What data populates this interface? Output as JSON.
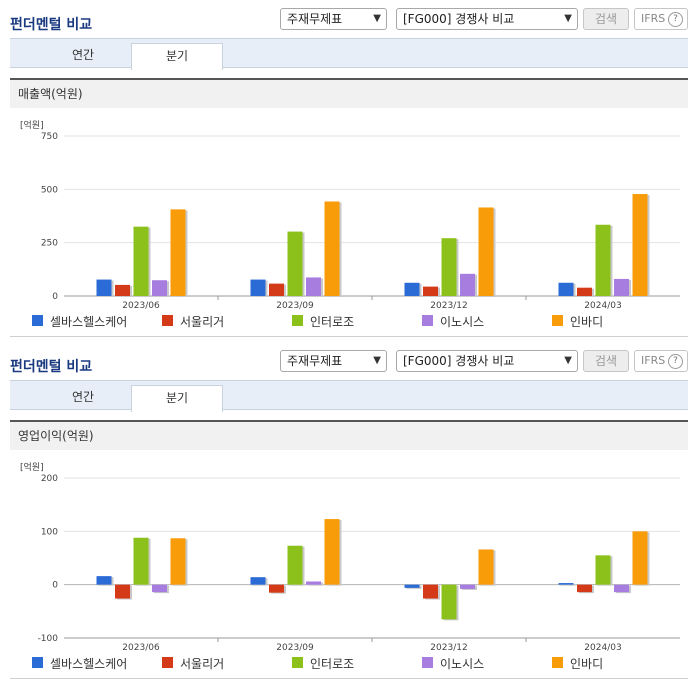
{
  "colors": {
    "series": [
      "#2a6bd6",
      "#d53a18",
      "#8cc11b",
      "#a77ee0",
      "#f99c0a"
    ]
  },
  "panels": [
    {
      "title": "펀더멘털 비교",
      "select_type": "주재무제표",
      "select_compare": "[FG000] 경쟁사 비교",
      "search_label": "검색",
      "ifrs_label": "IFRS",
      "help_glyph": "?",
      "tabs": [
        "연간",
        "분기"
      ],
      "active_tab": "분기",
      "section_title": "매출액(억원)",
      "unit_label": "[억원]"
    },
    {
      "title": "펀더멘털 비교",
      "select_type": "주재무제표",
      "select_compare": "[FG000] 경쟁사 비교",
      "search_label": "검색",
      "ifrs_label": "IFRS",
      "help_glyph": "?",
      "tabs": [
        "연간",
        "분기"
      ],
      "active_tab": "분기",
      "section_title": "영업이익(억원)",
      "unit_label": "[억원]"
    }
  ],
  "chart_data": [
    {
      "type": "bar",
      "title": "매출액(억원)",
      "ylabel": "[억원]",
      "categories": [
        "2023/06",
        "2023/09",
        "2023/12",
        "2024/03"
      ],
      "ylim": [
        0,
        750
      ],
      "yticks": [
        0,
        250,
        500,
        750
      ],
      "legend_position": "bottom",
      "series": [
        {
          "name": "셀바스헬스케어",
          "values": [
            77,
            77,
            62,
            62
          ]
        },
        {
          "name": "서울리거",
          "values": [
            52,
            58,
            44,
            39
          ]
        },
        {
          "name": "인터로조",
          "values": [
            325,
            302,
            271,
            334
          ]
        },
        {
          "name": "이노시스",
          "values": [
            74,
            87,
            104,
            80
          ]
        },
        {
          "name": "인바디",
          "values": [
            406,
            443,
            415,
            478
          ]
        }
      ]
    },
    {
      "type": "bar",
      "title": "영업이익(억원)",
      "ylabel": "[억원]",
      "categories": [
        "2023/06",
        "2023/09",
        "2023/12",
        "2024/03"
      ],
      "ylim": [
        -100,
        200
      ],
      "yticks": [
        -100,
        0,
        100,
        200
      ],
      "legend_position": "bottom",
      "series": [
        {
          "name": "셀바스헬스케어",
          "values": [
            16,
            14,
            -6,
            3
          ]
        },
        {
          "name": "서울리거",
          "values": [
            -26,
            -15,
            -26,
            -14
          ]
        },
        {
          "name": "인터로조",
          "values": [
            88,
            73,
            -65,
            55
          ]
        },
        {
          "name": "이노시스",
          "values": [
            -14,
            6,
            -8,
            -14
          ]
        },
        {
          "name": "인바디",
          "values": [
            87,
            123,
            66,
            100
          ]
        }
      ]
    }
  ]
}
